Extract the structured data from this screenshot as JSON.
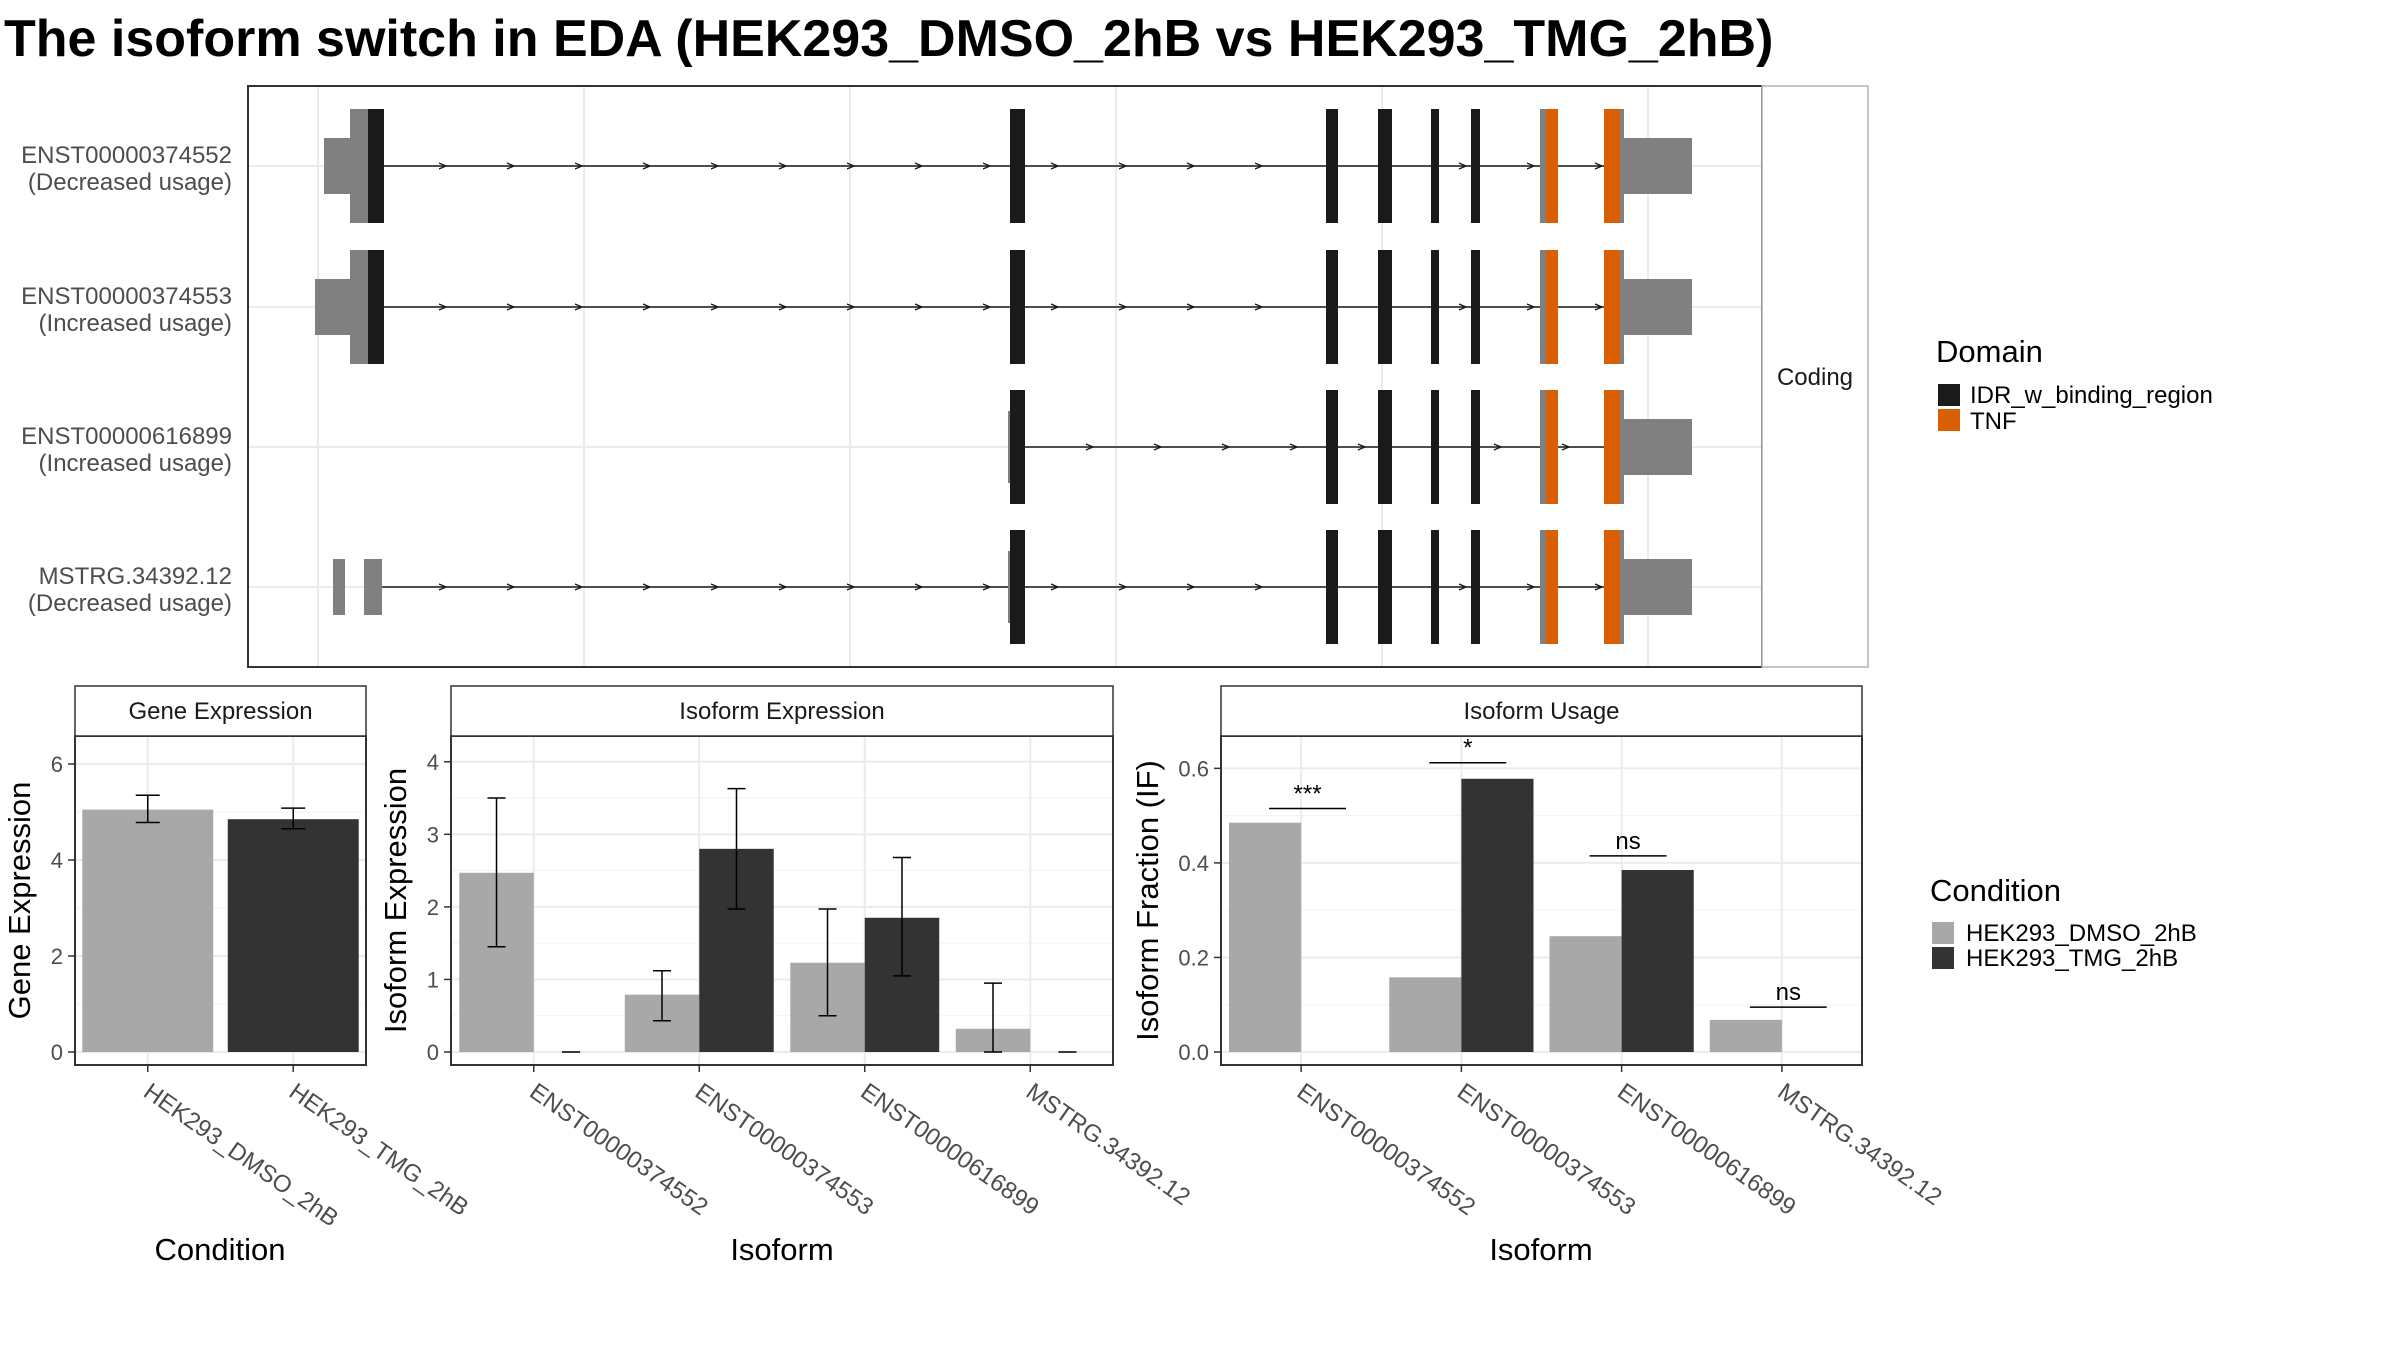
{
  "title": "The isoform switch in EDA (HEK293_DMSO_2hB vs HEK293_TMG_2hB)",
  "colors": {
    "idr": "#1a1a1a",
    "tnf": "#d95f02",
    "utr": "#808080",
    "dmso": "#a8a8a8",
    "tmg": "#333333",
    "grid": "#ebebeb",
    "panel_border": "#333333",
    "strip_bg": "#ffffff",
    "text": "#4d4d4d"
  },
  "structure_panel": {
    "strip_label": "Coding",
    "tracks": [
      {
        "id": "ENST00000374552",
        "status": "(Decreased usage)"
      },
      {
        "id": "ENST00000374553",
        "status": "(Increased usage)"
      },
      {
        "id": "ENST00000616899",
        "status": "(Increased usage)"
      },
      {
        "id": "MSTRG.34392.12",
        "status": "(Decreased usage)"
      }
    ]
  },
  "legends": {
    "domain": {
      "title": "Domain",
      "items": [
        "IDR_w_binding_region",
        "TNF"
      ]
    },
    "condition": {
      "title": "Condition",
      "items": [
        "HEK293_DMSO_2hB",
        "HEK293_TMG_2hB"
      ]
    }
  },
  "chart_data": [
    {
      "type": "bar",
      "title": "Gene Expression",
      "xlabel": "Condition",
      "ylabel": "Gene Expression",
      "ylim": [
        0,
        6.5
      ],
      "yticks": [
        0,
        2,
        4,
        6
      ],
      "categories": [
        "HEK293_DMSO_2hB",
        "HEK293_TMG_2hB"
      ],
      "values": [
        5.05,
        4.85
      ],
      "error": [
        [
          4.78,
          5.35
        ],
        [
          4.65,
          5.08
        ]
      ]
    },
    {
      "type": "bar",
      "title": "Isoform Expression",
      "xlabel": "Isoform",
      "ylabel": "Isoform Expression",
      "ylim": [
        0,
        4.3
      ],
      "yticks": [
        0,
        1,
        2,
        3,
        4
      ],
      "categories": [
        "ENST00000374552",
        "ENST00000374553",
        "ENST00000616899",
        "MSTRG.34392.12"
      ],
      "series": [
        {
          "name": "HEK293_DMSO_2hB",
          "values": [
            2.47,
            0.79,
            1.23,
            0.32
          ],
          "error": [
            [
              1.45,
              3.5
            ],
            [
              0.43,
              1.12
            ],
            [
              0.5,
              1.97
            ],
            [
              0.0,
              0.95
            ]
          ]
        },
        {
          "name": "HEK293_TMG_2hB",
          "values": [
            0.0,
            2.8,
            1.85,
            0.0
          ],
          "error": [
            [
              0.0,
              0.0
            ],
            [
              1.97,
              3.63
            ],
            [
              1.05,
              2.68
            ],
            [
              0.0,
              0.0
            ]
          ]
        }
      ]
    },
    {
      "type": "bar",
      "title": "Isoform Usage",
      "xlabel": "Isoform",
      "ylabel": "Isoform Fraction (IF)",
      "ylim": [
        0,
        0.66
      ],
      "yticks": [
        0.0,
        0.2,
        0.4,
        0.6
      ],
      "categories": [
        "ENST00000374552",
        "ENST00000374553",
        "ENST00000616899",
        "MSTRG.34392.12"
      ],
      "series": [
        {
          "name": "HEK293_DMSO_2hB",
          "values": [
            0.485,
            0.158,
            0.245,
            0.068
          ]
        },
        {
          "name": "HEK293_TMG_2hB",
          "values": [
            0.0,
            0.578,
            0.385,
            0.0
          ]
        }
      ],
      "significance": [
        "***",
        "*",
        "ns",
        "ns"
      ],
      "significance_y": [
        0.515,
        0.612,
        0.415,
        0.095
      ]
    }
  ]
}
